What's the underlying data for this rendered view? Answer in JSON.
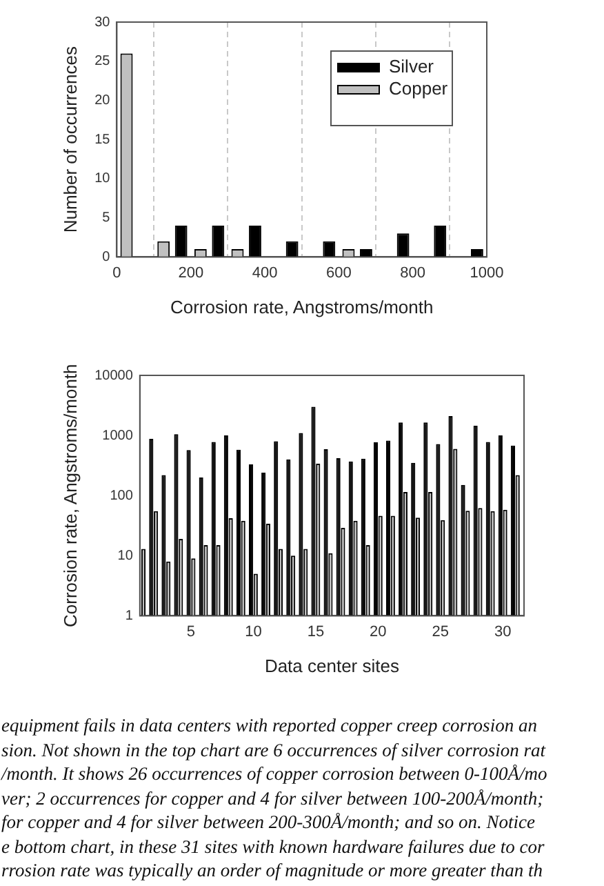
{
  "chart_data": [
    {
      "type": "histogram",
      "xlabel": "Corrosion rate, Angstroms/month",
      "ylabel": "Number of occurrences",
      "bins": [
        0,
        100,
        200,
        300,
        400,
        500,
        600,
        700,
        800,
        900,
        1000
      ],
      "series": [
        {
          "name": "Copper",
          "color": "#c0c0c0",
          "values": [
            26,
            2,
            1,
            1,
            0,
            0,
            1,
            0,
            0,
            0
          ]
        },
        {
          "name": "Silver",
          "color": "#000000",
          "values": [
            0,
            4,
            4,
            4,
            2,
            2,
            1,
            3,
            4,
            1
          ]
        }
      ],
      "xlim": [
        0,
        1000
      ],
      "xticks": [
        0,
        200,
        400,
        600,
        800,
        1000
      ],
      "ylim": [
        0,
        30
      ],
      "yticks": [
        0,
        5,
        10,
        15,
        20,
        25,
        30
      ],
      "grid": "x",
      "legend": "top right"
    },
    {
      "type": "bar",
      "xlabel": "Data center sites",
      "ylabel": "Corrosion rate, Angstroms/month",
      "x": [
        1,
        2,
        3,
        4,
        5,
        6,
        7,
        8,
        9,
        10,
        11,
        12,
        13,
        14,
        15,
        16,
        17,
        18,
        19,
        20,
        21,
        22,
        23,
        24,
        25,
        26,
        27,
        28,
        29,
        30,
        31
      ],
      "series": [
        {
          "color": "#000000",
          "values": [
            null,
            880,
            220,
            1050,
            570,
            200,
            780,
            1000,
            580,
            330,
            240,
            800,
            400,
            1100,
            3000,
            590,
            420,
            370,
            410,
            770,
            820,
            1650,
            350,
            1650,
            720,
            2100,
            150,
            1450,
            780,
            1000,
            680
          ]
        },
        {
          "color": "#c0c0c0",
          "values": [
            13,
            55,
            8,
            19,
            9,
            15,
            15,
            42,
            38,
            5,
            34,
            13,
            10,
            13,
            340,
            11,
            29,
            38,
            15,
            46,
            46,
            115,
            43,
            115,
            39,
            600,
            56,
            62,
            55,
            58,
            220
          ]
        }
      ],
      "xlim": [
        0.9,
        31.7
      ],
      "xticks": [
        5,
        10,
        15,
        20,
        25,
        30
      ],
      "ylim": [
        1,
        10000
      ],
      "yticks": [
        1,
        10,
        100,
        1000,
        10000
      ],
      "log": true,
      "grid": false,
      "annotations": [
        "equipment fails in data centers with reported copper creep corrosion an",
        "sion. Not shown in the top chart are 6 occurrences of silver corrosion rat",
        "/month. It shows 26 occurrences of copper corrosion between 0-100Å/mo",
        "ver;  2 occurrences for copper and 4 for silver between 100-200Å/month;",
        "for copper and 4 for silver between 200-300Å/month; and so on.  Notice",
        "e bottom chart, in these 31 sites with known hardware failures due to cor",
        "rrosion rate was typically an order of magnitude or more greater than th"
      ]
    }
  ]
}
